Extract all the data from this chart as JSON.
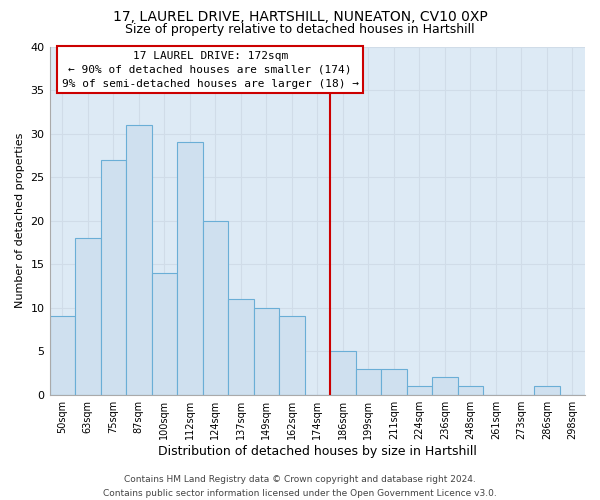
{
  "title": "17, LAUREL DRIVE, HARTSHILL, NUNEATON, CV10 0XP",
  "subtitle": "Size of property relative to detached houses in Hartshill",
  "xlabel": "Distribution of detached houses by size in Hartshill",
  "ylabel": "Number of detached properties",
  "footer_lines": [
    "Contains HM Land Registry data © Crown copyright and database right 2024.",
    "Contains public sector information licensed under the Open Government Licence v3.0."
  ],
  "bin_labels": [
    "50sqm",
    "63sqm",
    "75sqm",
    "87sqm",
    "100sqm",
    "112sqm",
    "124sqm",
    "137sqm",
    "149sqm",
    "162sqm",
    "174sqm",
    "186sqm",
    "199sqm",
    "211sqm",
    "224sqm",
    "236sqm",
    "248sqm",
    "261sqm",
    "273sqm",
    "286sqm",
    "298sqm"
  ],
  "bin_values": [
    9,
    18,
    27,
    31,
    14,
    29,
    20,
    11,
    10,
    9,
    0,
    5,
    3,
    3,
    1,
    2,
    1,
    0,
    0,
    1,
    0
  ],
  "bar_color": "#cfe0ef",
  "bar_edge_color": "#6aaed6",
  "ylim": [
    0,
    40
  ],
  "yticks": [
    0,
    5,
    10,
    15,
    20,
    25,
    30,
    35,
    40
  ],
  "vline_color": "#cc0000",
  "vline_bin_index": 10,
  "annotation_title": "17 LAUREL DRIVE: 172sqm",
  "annotation_line1": "← 90% of detached houses are smaller (174)",
  "annotation_line2": "9% of semi-detached houses are larger (18) →",
  "annotation_box_facecolor": "#ffffff",
  "annotation_box_edgecolor": "#cc0000",
  "grid_color": "#d0dce8",
  "plot_bg_color": "#ddeaf5",
  "fig_bg_color": "#ffffff",
  "title_fontsize": 10,
  "subtitle_fontsize": 9,
  "xlabel_fontsize": 9,
  "ylabel_fontsize": 8,
  "xtick_fontsize": 7,
  "ytick_fontsize": 8,
  "annotation_fontsize": 8,
  "footer_fontsize": 6.5
}
